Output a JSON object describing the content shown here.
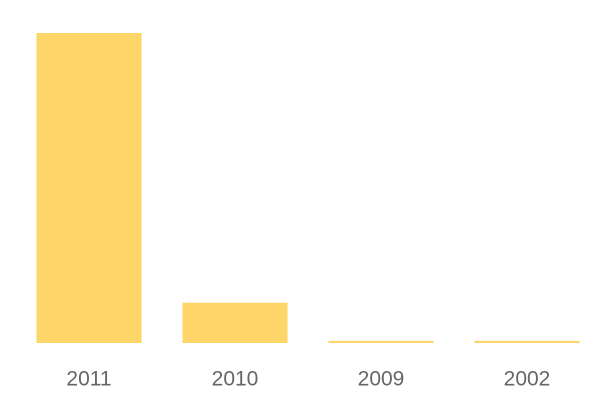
{
  "chart_data": {
    "type": "bar",
    "categories": [
      "2011",
      "2010",
      "2009",
      "2002"
    ],
    "values": [
      100,
      13,
      0.7,
      0.7
    ],
    "color": "#fdd569",
    "ylim": [
      0,
      100
    ]
  }
}
